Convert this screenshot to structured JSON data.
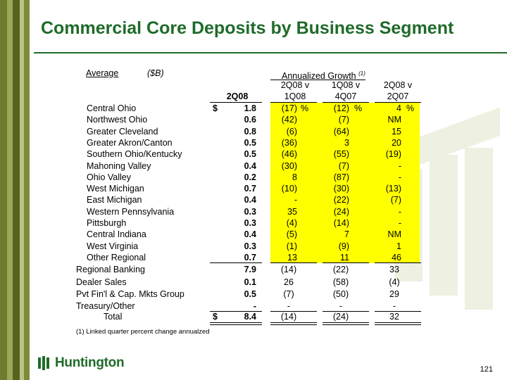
{
  "title": "Commercial Core Deposits by Business Segment",
  "header": {
    "average_label": "Average",
    "units_label": "($B)",
    "annualized_label": "Annualized Growth",
    "annualized_note": "(1)",
    "col1": "2Q08",
    "col2_top": "2Q08 v",
    "col2_bottom": "1Q08",
    "col3_top": "1Q08 v",
    "col3_bottom": "4Q07",
    "col4_top": "2Q08 v",
    "col4_bottom": "2Q07"
  },
  "rows": [
    {
      "label": "Central Ohio",
      "dollar": "$",
      "value": "1.8",
      "g1": "(17)",
      "g1u": "%",
      "g2": "(12)",
      "g2u": "%",
      "g3": "4",
      "g3u": "%"
    },
    {
      "label": "Northwest Ohio",
      "dollar": "",
      "value": "0.6",
      "g1": "(42)",
      "g1u": "",
      "g2": "(7)",
      "g2u": "",
      "g3": "NM",
      "g3u": ""
    },
    {
      "label": "Greater Cleveland",
      "dollar": "",
      "value": "0.8",
      "g1": "(6)",
      "g1u": "",
      "g2": "(64)",
      "g2u": "",
      "g3": "15",
      "g3u": ""
    },
    {
      "label": "Greater Akron/Canton",
      "dollar": "",
      "value": "0.5",
      "g1": "(36)",
      "g1u": "",
      "g2": "3",
      "g2u": "",
      "g3": "20",
      "g3u": ""
    },
    {
      "label": "Southern Ohio/Kentucky",
      "dollar": "",
      "value": "0.5",
      "g1": "(46)",
      "g1u": "",
      "g2": "(55)",
      "g2u": "",
      "g3": "(19)",
      "g3u": ""
    },
    {
      "label": "Mahoning Valley",
      "dollar": "",
      "value": "0.4",
      "g1": "(30)",
      "g1u": "",
      "g2": "(7)",
      "g2u": "",
      "g3": "-",
      "g3u": ""
    },
    {
      "label": "Ohio Valley",
      "dollar": "",
      "value": "0.2",
      "g1": "8",
      "g1u": "",
      "g2": "(87)",
      "g2u": "",
      "g3": "-",
      "g3u": ""
    },
    {
      "label": "West Michigan",
      "dollar": "",
      "value": "0.7",
      "g1": "(10)",
      "g1u": "",
      "g2": "(30)",
      "g2u": "",
      "g3": "(13)",
      "g3u": ""
    },
    {
      "label": "East Michigan",
      "dollar": "",
      "value": "0.4",
      "g1": "-",
      "g1u": "",
      "g2": "(22)",
      "g2u": "",
      "g3": "(7)",
      "g3u": ""
    },
    {
      "label": "Western Pennsylvania",
      "dollar": "",
      "value": "0.3",
      "g1": "35",
      "g1u": "",
      "g2": "(24)",
      "g2u": "",
      "g3": "-",
      "g3u": ""
    },
    {
      "label": "Pittsburgh",
      "dollar": "",
      "value": "0.3",
      "g1": "(4)",
      "g1u": "",
      "g2": "(14)",
      "g2u": "",
      "g3": "-",
      "g3u": ""
    },
    {
      "label": "Central Indiana",
      "dollar": "",
      "value": "0.4",
      "g1": "(5)",
      "g1u": "",
      "g2": "7",
      "g2u": "",
      "g3": "NM",
      "g3u": ""
    },
    {
      "label": "West Virginia",
      "dollar": "",
      "value": "0.3",
      "g1": "(1)",
      "g1u": "",
      "g2": "(9)",
      "g2u": "",
      "g3": "1",
      "g3u": ""
    },
    {
      "label": "Other Regional",
      "dollar": "",
      "value": "0.7",
      "g1": "13",
      "g1u": "",
      "g2": "11",
      "g2u": "",
      "g3": "46",
      "g3u": ""
    }
  ],
  "totals": [
    {
      "label": "Regional Banking",
      "dollar": "",
      "value": "7.9",
      "g1": "(14)",
      "g2": "(22)",
      "g3": "33"
    },
    {
      "label": "Dealer Sales",
      "dollar": "",
      "value": "0.1",
      "g1": "26",
      "g2": "(58)",
      "g3": "(4)"
    },
    {
      "label": "Pvt Fin'l & Cap. Mkts Group",
      "dollar": "",
      "value": "0.5",
      "g1": "(7)",
      "g2": "(50)",
      "g3": "29"
    },
    {
      "label": "Treasury/Other",
      "dollar": "",
      "value": "-",
      "g1": "-",
      "g2": "-",
      "g3": "-"
    },
    {
      "label": "Total",
      "dollar": "$",
      "value": "8.4",
      "g1": "(14)",
      "g2": "(24)",
      "g3": "32"
    }
  ],
  "footnote": "(1)  Linked quarter percent change annualzed",
  "logo_text": "Huntington",
  "page_number": "121"
}
